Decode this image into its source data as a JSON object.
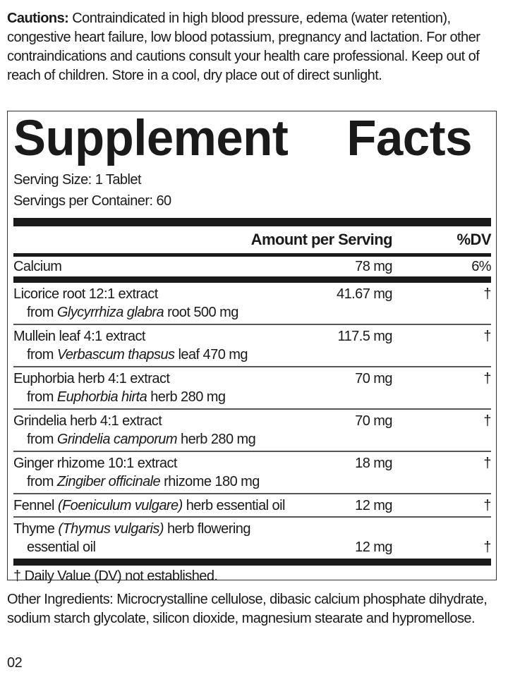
{
  "cautions": {
    "label": "Cautions:",
    "text": " Contraindicated in high blood pressure, edema (water retention), congestive heart failure, low blood potassium, pregnancy and lactation. For other contraindications and cautions consult your health care professional. Keep out of reach of children. Store in a cool, dry place out of direct sunlight."
  },
  "facts": {
    "title_word1": "Supplement",
    "title_word2": "Facts",
    "serving_size": "Serving Size: 1 Tablet",
    "servings_per_container": "Servings per Container: 60",
    "header_amount": "Amount per Serving",
    "header_dv": "%DV",
    "calcium": {
      "name": "Calcium",
      "amount": "78 mg",
      "dv": "6%"
    },
    "ingredients": [
      {
        "name": "Licorice root 12:1 extract",
        "from": "from ",
        "latin": "Glycyrrhiza glabra",
        "rest": " root 500 mg",
        "amount": "41.67 mg",
        "dv": "†"
      },
      {
        "name": "Mullein leaf 4:1 extract",
        "from": "from ",
        "latin": "Verbascum thapsus",
        "rest": " leaf 470 mg",
        "amount": "117.5 mg",
        "dv": "†"
      },
      {
        "name": "Euphorbia herb 4:1 extract",
        "from": "from ",
        "latin": "Euphorbia hirta",
        "rest": " herb 280 mg",
        "amount": "70 mg",
        "dv": "†"
      },
      {
        "name": "Grindelia herb 4:1 extract",
        "from": "from ",
        "latin": "Grindelia camporum",
        "rest": " herb 280 mg",
        "amount": "70 mg",
        "dv": "†"
      },
      {
        "name": "Ginger rhizome 10:1 extract",
        "from": "from ",
        "latin": "Zingiber officinale",
        "rest": " rhizome 180 mg",
        "amount": "18 mg",
        "dv": "†"
      }
    ],
    "fennel": {
      "name": "Fennel ",
      "latin": "(Foeniculum vulgare)",
      "rest": " herb essential oil",
      "amount": "12 mg",
      "dv": "†"
    },
    "thyme": {
      "name": "Thyme ",
      "latin": "(Thymus vulgaris)",
      "rest": " herb flowering",
      "line2": "essential oil",
      "amount": "12 mg",
      "dv": "†"
    },
    "footnote": "† Daily Value (DV) not established."
  },
  "other_ingredients": "Other Ingredients: Microcrystalline cellulose, dibasic calcium phosphate dihydrate, sodium starch glycolate, silicon dioxide, magnesium stearate and hypromellose.",
  "lot_code": "02"
}
